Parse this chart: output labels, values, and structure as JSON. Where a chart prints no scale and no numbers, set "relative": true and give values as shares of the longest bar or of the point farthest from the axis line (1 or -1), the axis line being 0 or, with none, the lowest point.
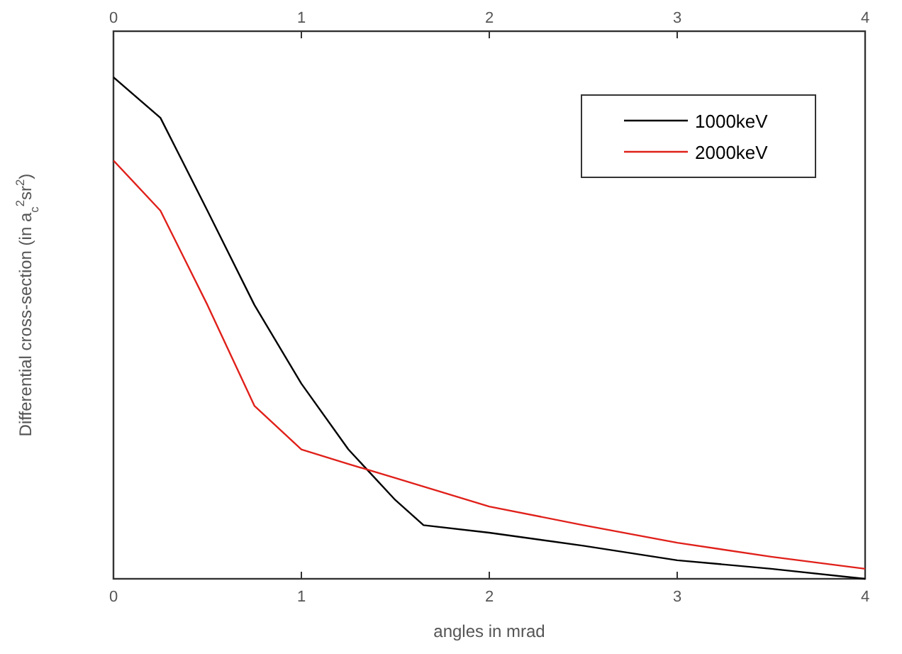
{
  "chart_data": {
    "type": "line",
    "xlabel": "angles in mrad",
    "ylabel": "Differential cross-section (in a$_{c}$$^{2}$sr$^{2}$)",
    "relative": true,
    "xlim": [
      0,
      4
    ],
    "xticks": [
      0,
      1,
      2,
      3,
      4
    ],
    "x2lim": [
      0,
      4
    ],
    "x2ticks": [
      0,
      1,
      2,
      3,
      4
    ],
    "legend": "top right",
    "line_style": "solid",
    "series": [
      {
        "name": "1000keV",
        "color": "#000000",
        "x": [
          0,
          0.25,
          0.5,
          0.75,
          1,
          1.25,
          1.5,
          1.65,
          2,
          2.5,
          3,
          3.5,
          4
        ],
        "values": [
          1,
          0.919,
          0.734,
          0.546,
          0.389,
          0.258,
          0.157,
          0.107,
          0.092,
          0.066,
          0.037,
          0.02,
          0
        ]
      },
      {
        "name": "2000keV",
        "color": "#e0201a",
        "x": [
          0,
          0.25,
          0.5,
          0.75,
          1,
          1.25,
          1.5,
          2,
          2.5,
          3,
          3.5,
          4
        ],
        "values": [
          0.834,
          0.734,
          0.546,
          0.345,
          0.258,
          0.229,
          0.201,
          0.144,
          0.107,
          0.072,
          0.044,
          0.02
        ]
      }
    ]
  }
}
